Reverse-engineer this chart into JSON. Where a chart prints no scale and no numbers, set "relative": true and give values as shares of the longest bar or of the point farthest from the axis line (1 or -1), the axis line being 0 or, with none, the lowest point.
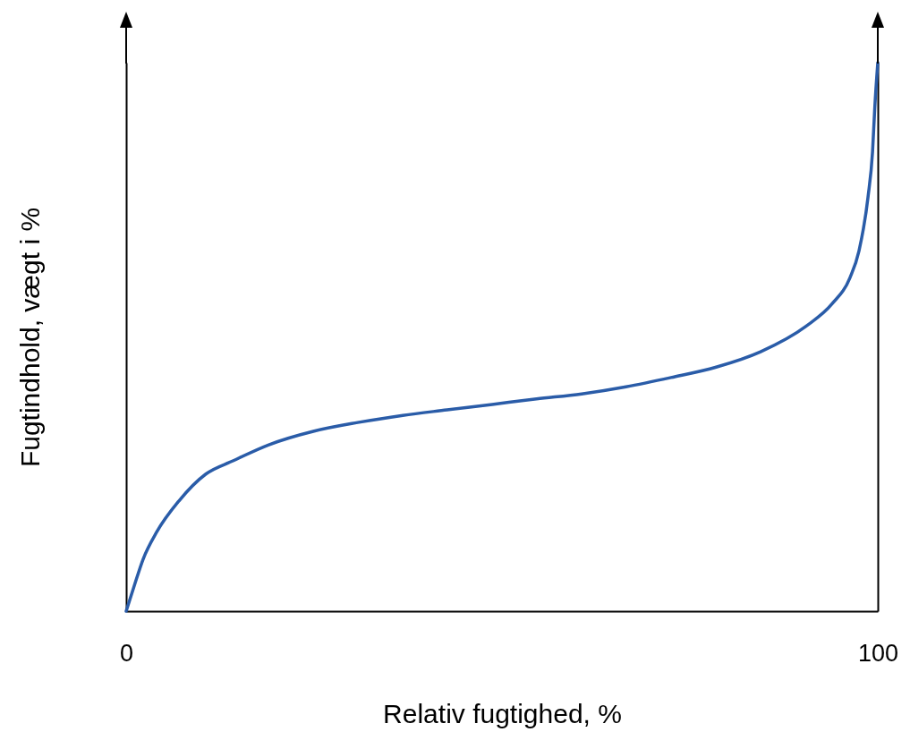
{
  "chart_data": {
    "type": "line",
    "xlabel": "Relativ fugtighed, %",
    "ylabel": "Fugtindhold, vægt i %",
    "relative": true,
    "xlim": [
      0,
      100
    ],
    "xticks": [
      0,
      100
    ],
    "legend": false,
    "series": [
      {
        "color": "#2a5ca8",
        "x": [
          0,
          1.07,
          2.26,
          4.05,
          7.02,
          10.6,
          14.2,
          18.9,
          24.9,
          30.8,
          36.8,
          42.7,
          48.7,
          54.6,
          60.6,
          66.5,
          72.5,
          78.5,
          84.4,
          90.4,
          93.9,
          96.3,
          97.5,
          98.7,
          99.3,
          99.6,
          100
        ],
        "values": [
          0,
          0.046,
          0.095,
          0.144,
          0.201,
          0.25,
          0.274,
          0.303,
          0.328,
          0.344,
          0.357,
          0.367,
          0.377,
          0.387,
          0.396,
          0.409,
          0.426,
          0.445,
          0.473,
          0.519,
          0.56,
          0.608,
          0.657,
          0.755,
          0.837,
          0.918,
          1
        ]
      }
    ]
  }
}
